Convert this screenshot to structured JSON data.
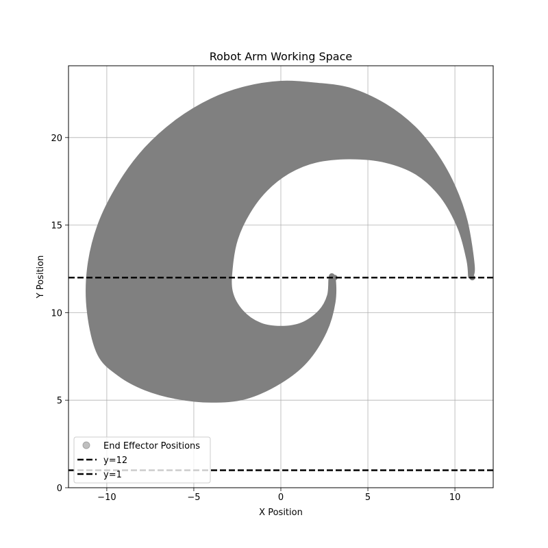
{
  "chart_data": {
    "type": "scatter",
    "title": "Robot Arm Working Space",
    "xlabel": "X Position",
    "ylabel": "Y Position",
    "xlim": [
      -12.2,
      12.2
    ],
    "ylim": [
      0,
      24.1
    ],
    "xticks": [
      -10,
      -5,
      0,
      5,
      10
    ],
    "yticks": [
      0,
      5,
      10,
      15,
      20
    ],
    "xtick_labels": [
      "−10",
      "−5",
      "0",
      "5",
      "10"
    ],
    "ytick_labels": [
      "0",
      "5",
      "10",
      "15",
      "20"
    ],
    "grid": true,
    "legend_position": "lower-left",
    "series": [
      {
        "name": "End Effector Positions",
        "kind": "scatter-region",
        "color": "#808080",
        "outer_boundary": [
          [
            11.0,
            12.0
          ],
          [
            11.1,
            12.7
          ],
          [
            10.7,
            15.2
          ],
          [
            10.0,
            17.2
          ],
          [
            9.0,
            19.0
          ],
          [
            7.7,
            20.6
          ],
          [
            6.0,
            21.9
          ],
          [
            4.0,
            22.8
          ],
          [
            2.0,
            23.1
          ],
          [
            0.0,
            23.2
          ],
          [
            -2.0,
            22.9
          ],
          [
            -4.0,
            22.2
          ],
          [
            -6.0,
            21.0
          ],
          [
            -7.8,
            19.4
          ],
          [
            -9.3,
            17.4
          ],
          [
            -10.5,
            15.0
          ],
          [
            -11.1,
            12.5
          ],
          [
            -11.1,
            10.0
          ],
          [
            -10.5,
            7.6
          ],
          [
            -9.3,
            6.4
          ],
          [
            -7.8,
            5.6
          ],
          [
            -6.0,
            5.1
          ],
          [
            -4.0,
            4.9
          ],
          [
            -2.0,
            5.1
          ],
          [
            0.0,
            6.0
          ],
          [
            1.5,
            7.2
          ],
          [
            2.6,
            8.9
          ],
          [
            3.1,
            10.6
          ],
          [
            3.1,
            12.0
          ]
        ],
        "inner_boundary": [
          [
            2.8,
            12.1
          ],
          [
            2.7,
            11.0
          ],
          [
            2.2,
            10.1
          ],
          [
            1.2,
            9.4
          ],
          [
            0.0,
            9.2
          ],
          [
            -1.2,
            9.4
          ],
          [
            -2.2,
            10.1
          ],
          [
            -2.8,
            11.2
          ],
          [
            -2.8,
            12.6
          ],
          [
            -2.5,
            14.2
          ],
          [
            -1.8,
            15.7
          ],
          [
            -0.8,
            17.0
          ],
          [
            0.5,
            18.0
          ],
          [
            2.0,
            18.6
          ],
          [
            4.0,
            18.8
          ],
          [
            6.0,
            18.6
          ],
          [
            7.8,
            17.9
          ],
          [
            9.2,
            16.6
          ],
          [
            10.2,
            14.8
          ],
          [
            10.7,
            13.0
          ],
          [
            10.8,
            12.0
          ]
        ]
      },
      {
        "name": "y=12",
        "kind": "hline",
        "y": 12,
        "color": "#000000",
        "dash": "dashed"
      },
      {
        "name": "y=1",
        "kind": "hline",
        "y": 1,
        "color": "#000000",
        "dash": "dashed"
      }
    ]
  }
}
